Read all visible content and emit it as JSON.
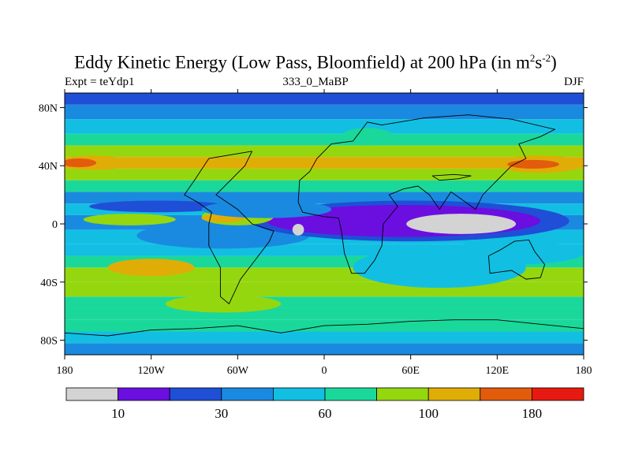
{
  "chart_data": {
    "type": "heatmap",
    "title_main": "Eddy Kinetic Energy (Low Pass, Bloomfield) at 200 hPa (in m",
    "title_sup1": "2",
    "title_mid": "s",
    "title_sup2": "-2",
    "title_end": ")",
    "left_label": "Expt = teYdp1",
    "center_label": "333_0_MaBP",
    "right_label": "DJF",
    "x_ticks": [
      {
        "value": -180,
        "label": "180"
      },
      {
        "value": -120,
        "label": "120W"
      },
      {
        "value": -60,
        "label": "60W"
      },
      {
        "value": 0,
        "label": "0"
      },
      {
        "value": 60,
        "label": "60E"
      },
      {
        "value": 120,
        "label": "120E"
      },
      {
        "value": 180,
        "label": "180"
      }
    ],
    "y_ticks": [
      {
        "value": 80,
        "label": "80N"
      },
      {
        "value": 40,
        "label": "40N"
      },
      {
        "value": 0,
        "label": "0"
      },
      {
        "value": -40,
        "label": "40S"
      },
      {
        "value": -80,
        "label": "80S"
      }
    ],
    "x_range": [
      -180,
      180
    ],
    "y_range": [
      -90,
      90
    ],
    "colorbar": {
      "colors": [
        "#d3d3d3",
        "#6a0fe0",
        "#1f4fd6",
        "#1a8ae0",
        "#12bfe2",
        "#1ad89a",
        "#95d70f",
        "#e0ad07",
        "#e25c0c",
        "#e61a10"
      ],
      "label_positions": [
        1,
        3,
        5,
        7,
        9
      ],
      "labels": [
        "10",
        "30",
        "60",
        "100",
        "180"
      ]
    },
    "bands": [
      {
        "lat": [
          -90,
          -82
        ],
        "color": "#1a8ae0"
      },
      {
        "lat": [
          -82,
          -74
        ],
        "color": "#12bfe2"
      },
      {
        "lat": [
          -74,
          -66
        ],
        "color": "#1ad89a"
      },
      {
        "lat": [
          -66,
          -58
        ],
        "color": "#1ad89a"
      },
      {
        "lat": [
          -58,
          -50
        ],
        "color": "#1ad89a"
      },
      {
        "lat": [
          -50,
          -40
        ],
        "color": "#95d70f"
      },
      {
        "lat": [
          -40,
          -30
        ],
        "color": "#95d70f"
      },
      {
        "lat": [
          -30,
          -22
        ],
        "color": "#1ad89a"
      },
      {
        "lat": [
          -22,
          -14
        ],
        "color": "#12bfe2"
      },
      {
        "lat": [
          -14,
          -4
        ],
        "color": "#12bfe2"
      },
      {
        "lat": [
          -4,
          6
        ],
        "color": "#1a8ae0"
      },
      {
        "lat": [
          6,
          14
        ],
        "color": "#12bfe2"
      },
      {
        "lat": [
          14,
          22
        ],
        "color": "#1a8ae0"
      },
      {
        "lat": [
          22,
          30
        ],
        "color": "#1ad89a"
      },
      {
        "lat": [
          30,
          38
        ],
        "color": "#95d70f"
      },
      {
        "lat": [
          38,
          46
        ],
        "color": "#e0ad07"
      },
      {
        "lat": [
          46,
          54
        ],
        "color": "#95d70f"
      },
      {
        "lat": [
          54,
          62
        ],
        "color": "#1ad89a"
      },
      {
        "lat": [
          62,
          72
        ],
        "color": "#12bfe2"
      },
      {
        "lat": [
          72,
          82
        ],
        "color": "#1a8ae0"
      },
      {
        "lat": [
          82,
          90
        ],
        "color": "#1f4fd6"
      }
    ],
    "blobs": [
      {
        "lon": -115,
        "lat": 12,
        "rx": 48,
        "ry": 4,
        "color": "#1f4fd6"
      },
      {
        "lon": -70,
        "lat": -8,
        "rx": 60,
        "ry": 9,
        "color": "#1a8ae0"
      },
      {
        "lon": 60,
        "lat": 2,
        "rx": 110,
        "ry": 14,
        "color": "#1f4fd6"
      },
      {
        "lon": 55,
        "lat": 2,
        "rx": 95,
        "ry": 11,
        "color": "#6a0fe0"
      },
      {
        "lon": 95,
        "lat": 0,
        "rx": 38,
        "ry": 7,
        "color": "#d3d3d3"
      },
      {
        "lon": -18,
        "lat": -4,
        "rx": 4,
        "ry": 4,
        "color": "#d3d3d3"
      },
      {
        "lon": -135,
        "lat": 3,
        "rx": 32,
        "ry": 4,
        "color": "#95d70f"
      },
      {
        "lon": -60,
        "lat": 5,
        "rx": 25,
        "ry": 6,
        "color": "#95d70f"
      },
      {
        "lon": -70,
        "lat": 4,
        "rx": 15,
        "ry": 3,
        "color": "#e0ad07"
      },
      {
        "lon": -160,
        "lat": 42,
        "rx": 25,
        "ry": 5,
        "color": "#e0ad07"
      },
      {
        "lon": -170,
        "lat": 42,
        "rx": 12,
        "ry": 3,
        "color": "#e25c0c"
      },
      {
        "lon": 150,
        "lat": 41,
        "rx": 30,
        "ry": 6,
        "color": "#e0ad07"
      },
      {
        "lon": 145,
        "lat": 41,
        "rx": 18,
        "ry": 3,
        "color": "#e25c0c"
      },
      {
        "lon": -40,
        "lat": 10,
        "rx": 45,
        "ry": 6,
        "color": "#1a8ae0"
      },
      {
        "lon": -120,
        "lat": -30,
        "rx": 30,
        "ry": 6,
        "color": "#e0ad07"
      },
      {
        "lon": -70,
        "lat": -55,
        "rx": 40,
        "ry": 6,
        "color": "#95d70f"
      },
      {
        "lon": 30,
        "lat": 60,
        "rx": 18,
        "ry": 6,
        "color": "#1ad89a"
      },
      {
        "lon": 80,
        "lat": -30,
        "rx": 60,
        "ry": 14,
        "color": "#12bfe2"
      },
      {
        "lon": 130,
        "lat": -20,
        "rx": 50,
        "ry": 8,
        "color": "#12bfe2"
      }
    ],
    "coastlines": [
      [
        [
          20,
          57
        ],
        [
          5,
          55
        ],
        [
          -5,
          45
        ],
        [
          -10,
          36
        ],
        [
          -17,
          30
        ],
        [
          -18,
          15
        ],
        [
          -15,
          8
        ],
        [
          0,
          5
        ],
        [
          10,
          4
        ],
        [
          12,
          -5
        ],
        [
          14,
          -20
        ],
        [
          19,
          -34
        ],
        [
          28,
          -34
        ],
        [
          35,
          -25
        ],
        [
          40,
          -15
        ],
        [
          41,
          0
        ],
        [
          51,
          12
        ],
        [
          45,
          20
        ],
        [
          55,
          24
        ],
        [
          65,
          26
        ],
        [
          73,
          20
        ],
        [
          80,
          10
        ],
        [
          88,
          22
        ],
        [
          98,
          15
        ],
        [
          105,
          10
        ],
        [
          110,
          20
        ],
        [
          120,
          30
        ],
        [
          130,
          40
        ],
        [
          140,
          45
        ],
        [
          135,
          55
        ],
        [
          150,
          60
        ],
        [
          160,
          65
        ],
        [
          130,
          72
        ],
        [
          100,
          75
        ],
        [
          70,
          73
        ],
        [
          40,
          68
        ],
        [
          30,
          70
        ],
        [
          20,
          57
        ]
      ],
      [
        [
          -50,
          50
        ],
        [
          -80,
          45
        ],
        [
          -90,
          30
        ],
        [
          -97,
          20
        ],
        [
          -88,
          15
        ],
        [
          -78,
          8
        ],
        [
          -80,
          0
        ],
        [
          -80,
          -15
        ],
        [
          -72,
          -30
        ],
        [
          -72,
          -50
        ],
        [
          -66,
          -55
        ],
        [
          -58,
          -38
        ],
        [
          -48,
          -25
        ],
        [
          -38,
          -12
        ],
        [
          -35,
          -5
        ],
        [
          -50,
          0
        ],
        [
          -60,
          10
        ],
        [
          -75,
          20
        ],
        [
          -65,
          30
        ],
        [
          -55,
          40
        ],
        [
          -50,
          50
        ]
      ],
      [
        [
          114,
          -22
        ],
        [
          122,
          -18
        ],
        [
          132,
          -12
        ],
        [
          142,
          -11
        ],
        [
          146,
          -19
        ],
        [
          153,
          -28
        ],
        [
          150,
          -37
        ],
        [
          140,
          -38
        ],
        [
          130,
          -32
        ],
        [
          115,
          -34
        ],
        [
          114,
          -22
        ]
      ],
      [
        [
          -180,
          -75
        ],
        [
          -150,
          -77
        ],
        [
          -120,
          -73
        ],
        [
          -90,
          -72
        ],
        [
          -60,
          -70
        ],
        [
          -30,
          -75
        ],
        [
          0,
          -70
        ],
        [
          30,
          -69
        ],
        [
          60,
          -67
        ],
        [
          90,
          -66
        ],
        [
          120,
          -66
        ],
        [
          150,
          -69
        ],
        [
          180,
          -72
        ]
      ],
      [
        [
          75,
          33
        ],
        [
          90,
          34
        ],
        [
          102,
          33
        ],
        [
          93,
          31
        ],
        [
          80,
          30
        ],
        [
          75,
          33
        ]
      ]
    ]
  }
}
